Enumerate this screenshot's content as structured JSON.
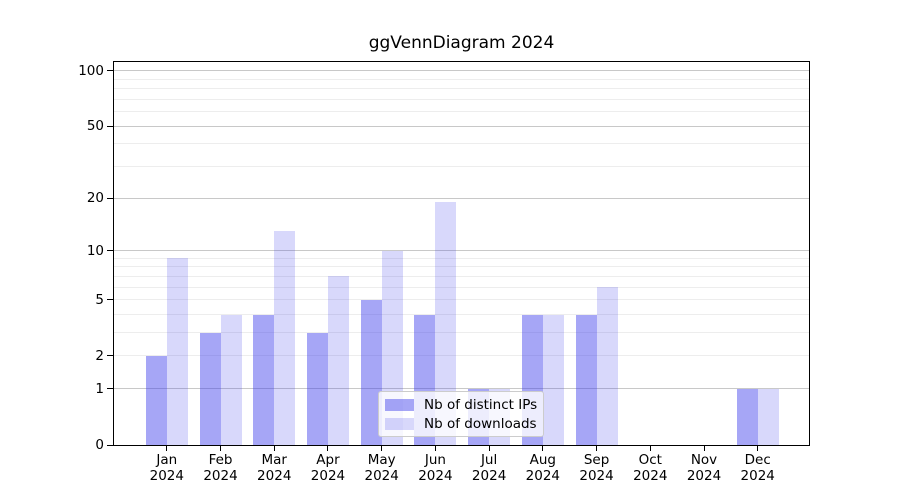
{
  "figure": {
    "title": "ggVennDiagram 2024"
  },
  "chart_data": {
    "type": "bar",
    "title": "ggVennDiagram 2024",
    "x": {
      "months": [
        "Jan",
        "Feb",
        "Mar",
        "Apr",
        "May",
        "Jun",
        "Jul",
        "Aug",
        "Sep",
        "Oct",
        "Nov",
        "Dec"
      ],
      "year": "2024"
    },
    "categories": [
      "Jan 2024",
      "Feb 2024",
      "Mar 2024",
      "Apr 2024",
      "May 2024",
      "Jun 2024",
      "Jul 2024",
      "Aug 2024",
      "Sep 2024",
      "Oct 2024",
      "Nov 2024",
      "Dec 2024"
    ],
    "series": [
      {
        "name": "Nb of distinct IPs",
        "color_hex": "#a7a7f6",
        "color_rgba": "rgba(58,58,235,0.45)",
        "values": [
          2,
          3,
          4,
          3,
          5,
          4,
          1,
          4,
          4,
          0,
          0,
          1
        ]
      },
      {
        "name": "Nb of downloads",
        "color_hex": "#d8d8fb",
        "color_rgba": "rgba(58,58,235,0.20)",
        "values": [
          9,
          4,
          13,
          7,
          10,
          19,
          1,
          4,
          6,
          0,
          0,
          1
        ]
      }
    ],
    "y_axis": {
      "scale": "log10(1+y)",
      "tick_labels": [
        "0",
        "1",
        "2",
        "5",
        "10",
        "20",
        "50",
        "100"
      ],
      "tick_values": [
        0,
        1,
        2,
        5,
        10,
        20,
        50,
        100
      ],
      "major_gridlines": [
        1,
        10,
        20,
        50,
        100
      ],
      "minor_gridlines": [
        2,
        3,
        4,
        5,
        6,
        7,
        8,
        9,
        30,
        40,
        60,
        70,
        80,
        90
      ],
      "ylim": [
        0,
        112
      ]
    },
    "legend": {
      "position": "lower center",
      "items": [
        "Nb of distinct IPs",
        "Nb of downloads"
      ]
    },
    "grid": true
  },
  "colors": {
    "background": "#ffffff",
    "axis": "#000000",
    "grid_major": "#c8c8c8",
    "grid_minor": "#ededed",
    "legend_border": "#cccccc",
    "legend_bg": "rgba(255,255,255,0.8)"
  }
}
